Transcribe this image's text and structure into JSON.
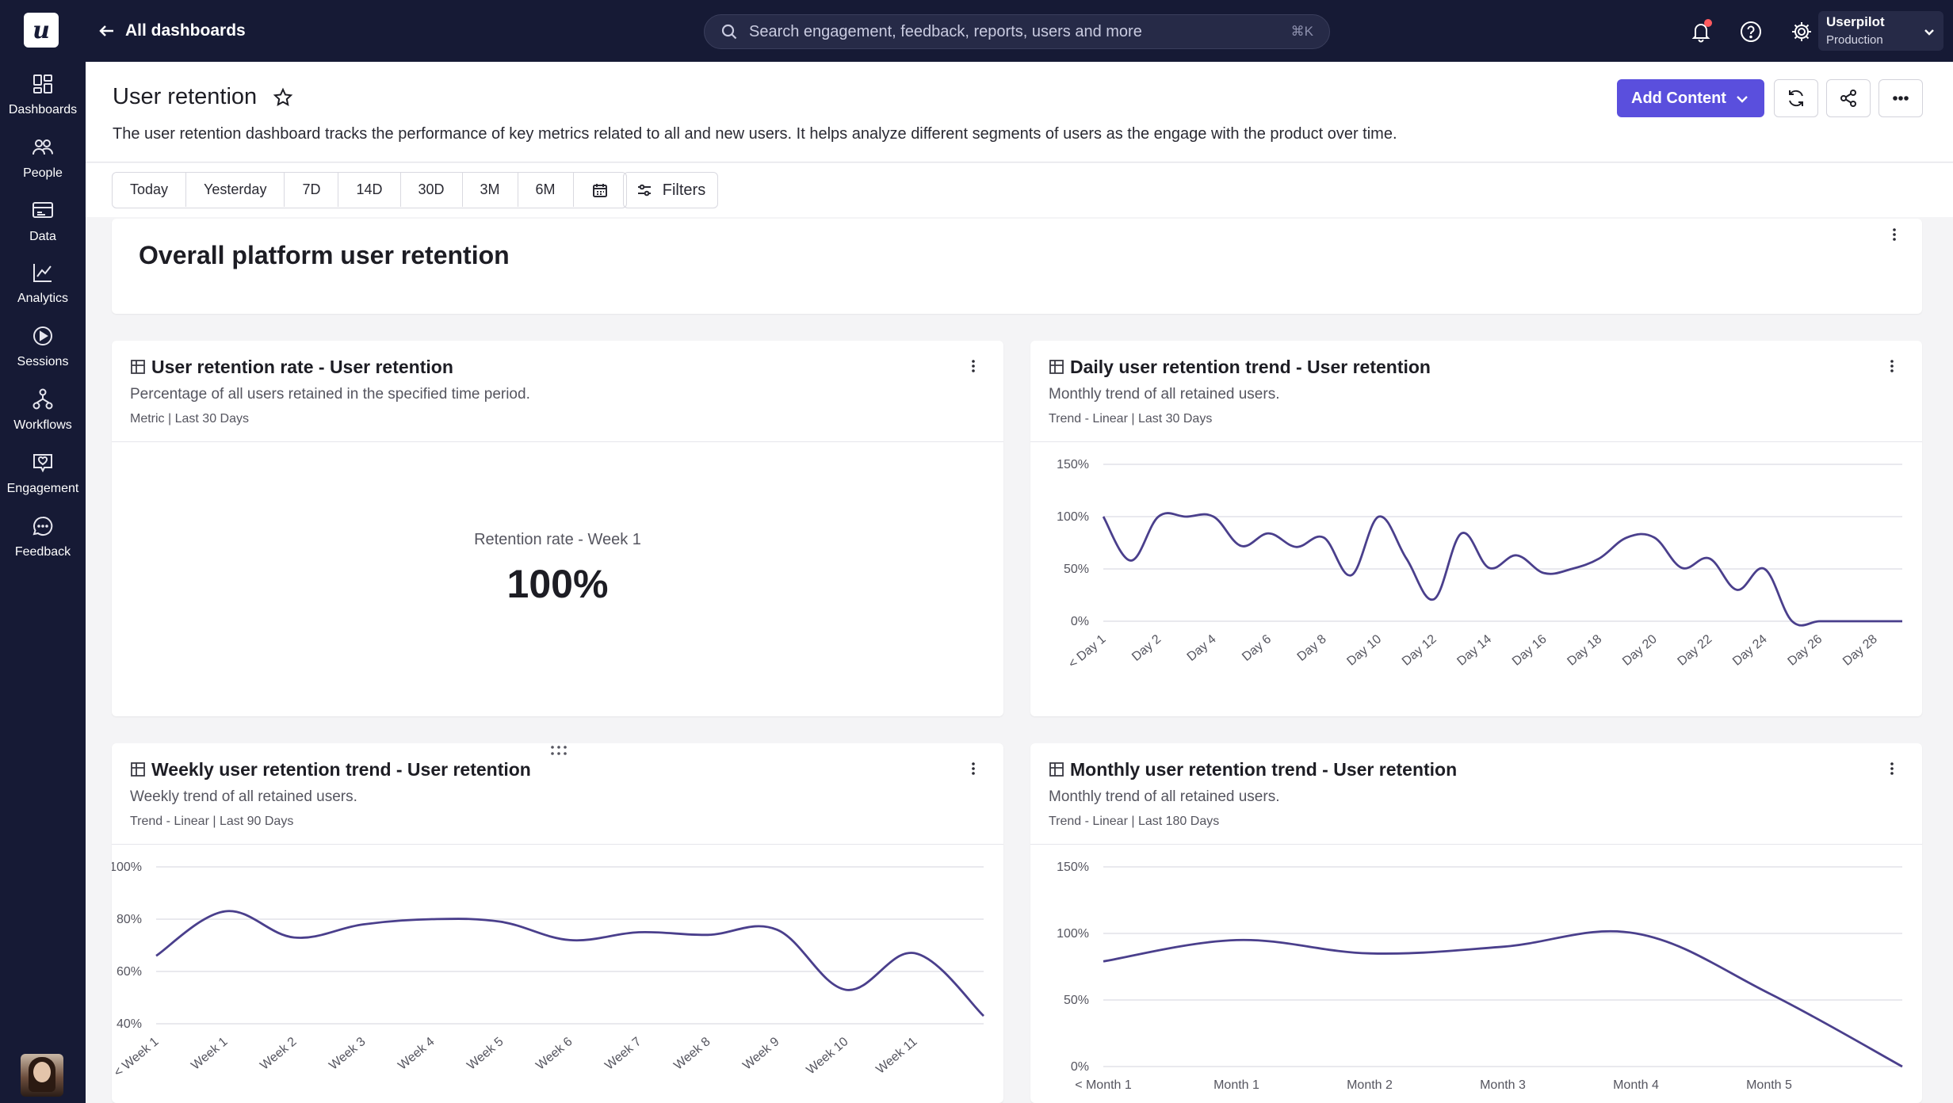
{
  "brand": {
    "logo_letter": "u",
    "accent": "#5a4fdd",
    "nav_bg": "#161a35",
    "line_color": "#4a3f8c"
  },
  "sidebar": {
    "items": [
      {
        "label": "Dashboards",
        "icon": "dashboard-icon"
      },
      {
        "label": "People",
        "icon": "people-icon"
      },
      {
        "label": "Data",
        "icon": "data-icon"
      },
      {
        "label": "Analytics",
        "icon": "analytics-icon"
      },
      {
        "label": "Sessions",
        "icon": "sessions-icon"
      },
      {
        "label": "Workflows",
        "icon": "workflows-icon"
      },
      {
        "label": "Engagement",
        "icon": "engagement-icon"
      },
      {
        "label": "Feedback",
        "icon": "feedback-icon"
      }
    ]
  },
  "topbar": {
    "back_label": "All dashboards",
    "search_placeholder": "Search engagement, feedback, reports, users and more",
    "search_shortcut": "⌘K",
    "account_name": "Userpilot",
    "account_env": "Production"
  },
  "page": {
    "title": "User retention",
    "description": "The user retention dashboard tracks the performance of key metrics related to all and new users. It helps analyze different segments of users as the engage with the product over time.",
    "add_content_label": "Add Content"
  },
  "toolbar": {
    "ranges": [
      "Today",
      "Yesterday",
      "7D",
      "14D",
      "30D",
      "3M",
      "6M"
    ],
    "filters_label": "Filters"
  },
  "section": {
    "title": "Overall platform user retention"
  },
  "cards": {
    "retention_rate": {
      "title": "User retention rate - User retention",
      "subtitle": "Percentage of all users retained in the specified time period.",
      "meta": "Metric | Last 30 Days",
      "metric_label": "Retention rate - Week 1",
      "metric_value": "100%"
    },
    "daily": {
      "title": "Daily user retention trend - User retention",
      "subtitle": "Monthly trend of all retained users.",
      "meta": "Trend - Linear | Last 30 Days"
    },
    "weekly": {
      "title": "Weekly user retention trend - User retention",
      "subtitle": "Weekly trend of all retained users.",
      "meta": "Trend - Linear | Last 90 Days"
    },
    "monthly": {
      "title": "Monthly user retention trend - User retention",
      "subtitle": "Monthly trend of all retained users.",
      "meta": "Trend - Linear | Last 180 Days"
    }
  },
  "chart_data": [
    {
      "id": "daily",
      "type": "line",
      "ylim": [
        0,
        150
      ],
      "yticks": [
        "0%",
        "50%",
        "100%",
        "150%"
      ],
      "yticks_values": [
        0,
        50,
        100,
        150
      ],
      "xtick_labels": [
        "< Day 1",
        "Day 2",
        "Day 4",
        "Day 6",
        "Day 8",
        "Day 10",
        "Day 12",
        "Day 14",
        "Day 16",
        "Day 18",
        "Day 20",
        "Day 22",
        "Day 24",
        "Day 26",
        "Day 28"
      ],
      "x": [
        "< Day 1",
        "Day 1",
        "Day 2",
        "Day 3",
        "Day 4",
        "Day 5",
        "Day 6",
        "Day 7",
        "Day 8",
        "Day 9",
        "Day 10",
        "Day 11",
        "Day 12",
        "Day 13",
        "Day 14",
        "Day 15",
        "Day 16",
        "Day 17",
        "Day 18",
        "Day 19",
        "Day 20",
        "Day 21",
        "Day 22",
        "Day 23",
        "Day 24",
        "Day 25",
        "Day 26",
        "Day 27",
        "Day 28",
        "Day 29"
      ],
      "values": [
        100,
        58,
        100,
        100,
        100,
        72,
        84,
        71,
        80,
        44,
        100,
        60,
        21,
        84,
        51,
        63,
        46,
        50,
        60,
        80,
        80,
        51,
        60,
        30,
        50,
        0,
        0,
        0,
        0,
        0
      ],
      "rotate_labels": true
    },
    {
      "id": "weekly",
      "type": "line",
      "ylim": [
        40,
        100
      ],
      "yticks": [
        "40%",
        "60%",
        "80%",
        "100%"
      ],
      "yticks_values": [
        40,
        60,
        80,
        100
      ],
      "xtick_labels": [
        "< Week 1",
        "Week 1",
        "Week 2",
        "Week 3",
        "Week 4",
        "Week 5",
        "Week 6",
        "Week 7",
        "Week 8",
        "Week 9",
        "Week 10",
        "Week 11"
      ],
      "x": [
        "< Week 1",
        "Week 1",
        "Week 2",
        "Week 3",
        "Week 4",
        "Week 5",
        "Week 6",
        "Week 7",
        "Week 8",
        "Week 9",
        "Week 10",
        "Week 11",
        "Week 12"
      ],
      "values": [
        66,
        83,
        73,
        78,
        80,
        79,
        72,
        75,
        74,
        76,
        53,
        67,
        43
      ],
      "rotate_labels": true
    },
    {
      "id": "monthly",
      "type": "line",
      "ylim": [
        0,
        150
      ],
      "yticks": [
        "0%",
        "50%",
        "100%",
        "150%"
      ],
      "yticks_values": [
        0,
        50,
        100,
        150
      ],
      "xtick_labels": [
        "< Month 1",
        "Month 1",
        "Month 2",
        "Month 3",
        "Month 4",
        "Month 5"
      ],
      "x": [
        "< Month 1",
        "Month 1",
        "Month 2",
        "Month 3",
        "Month 4",
        "Month 5",
        "Month 6"
      ],
      "values": [
        79,
        95,
        85,
        90,
        100,
        55,
        0
      ],
      "rotate_labels": false
    }
  ]
}
